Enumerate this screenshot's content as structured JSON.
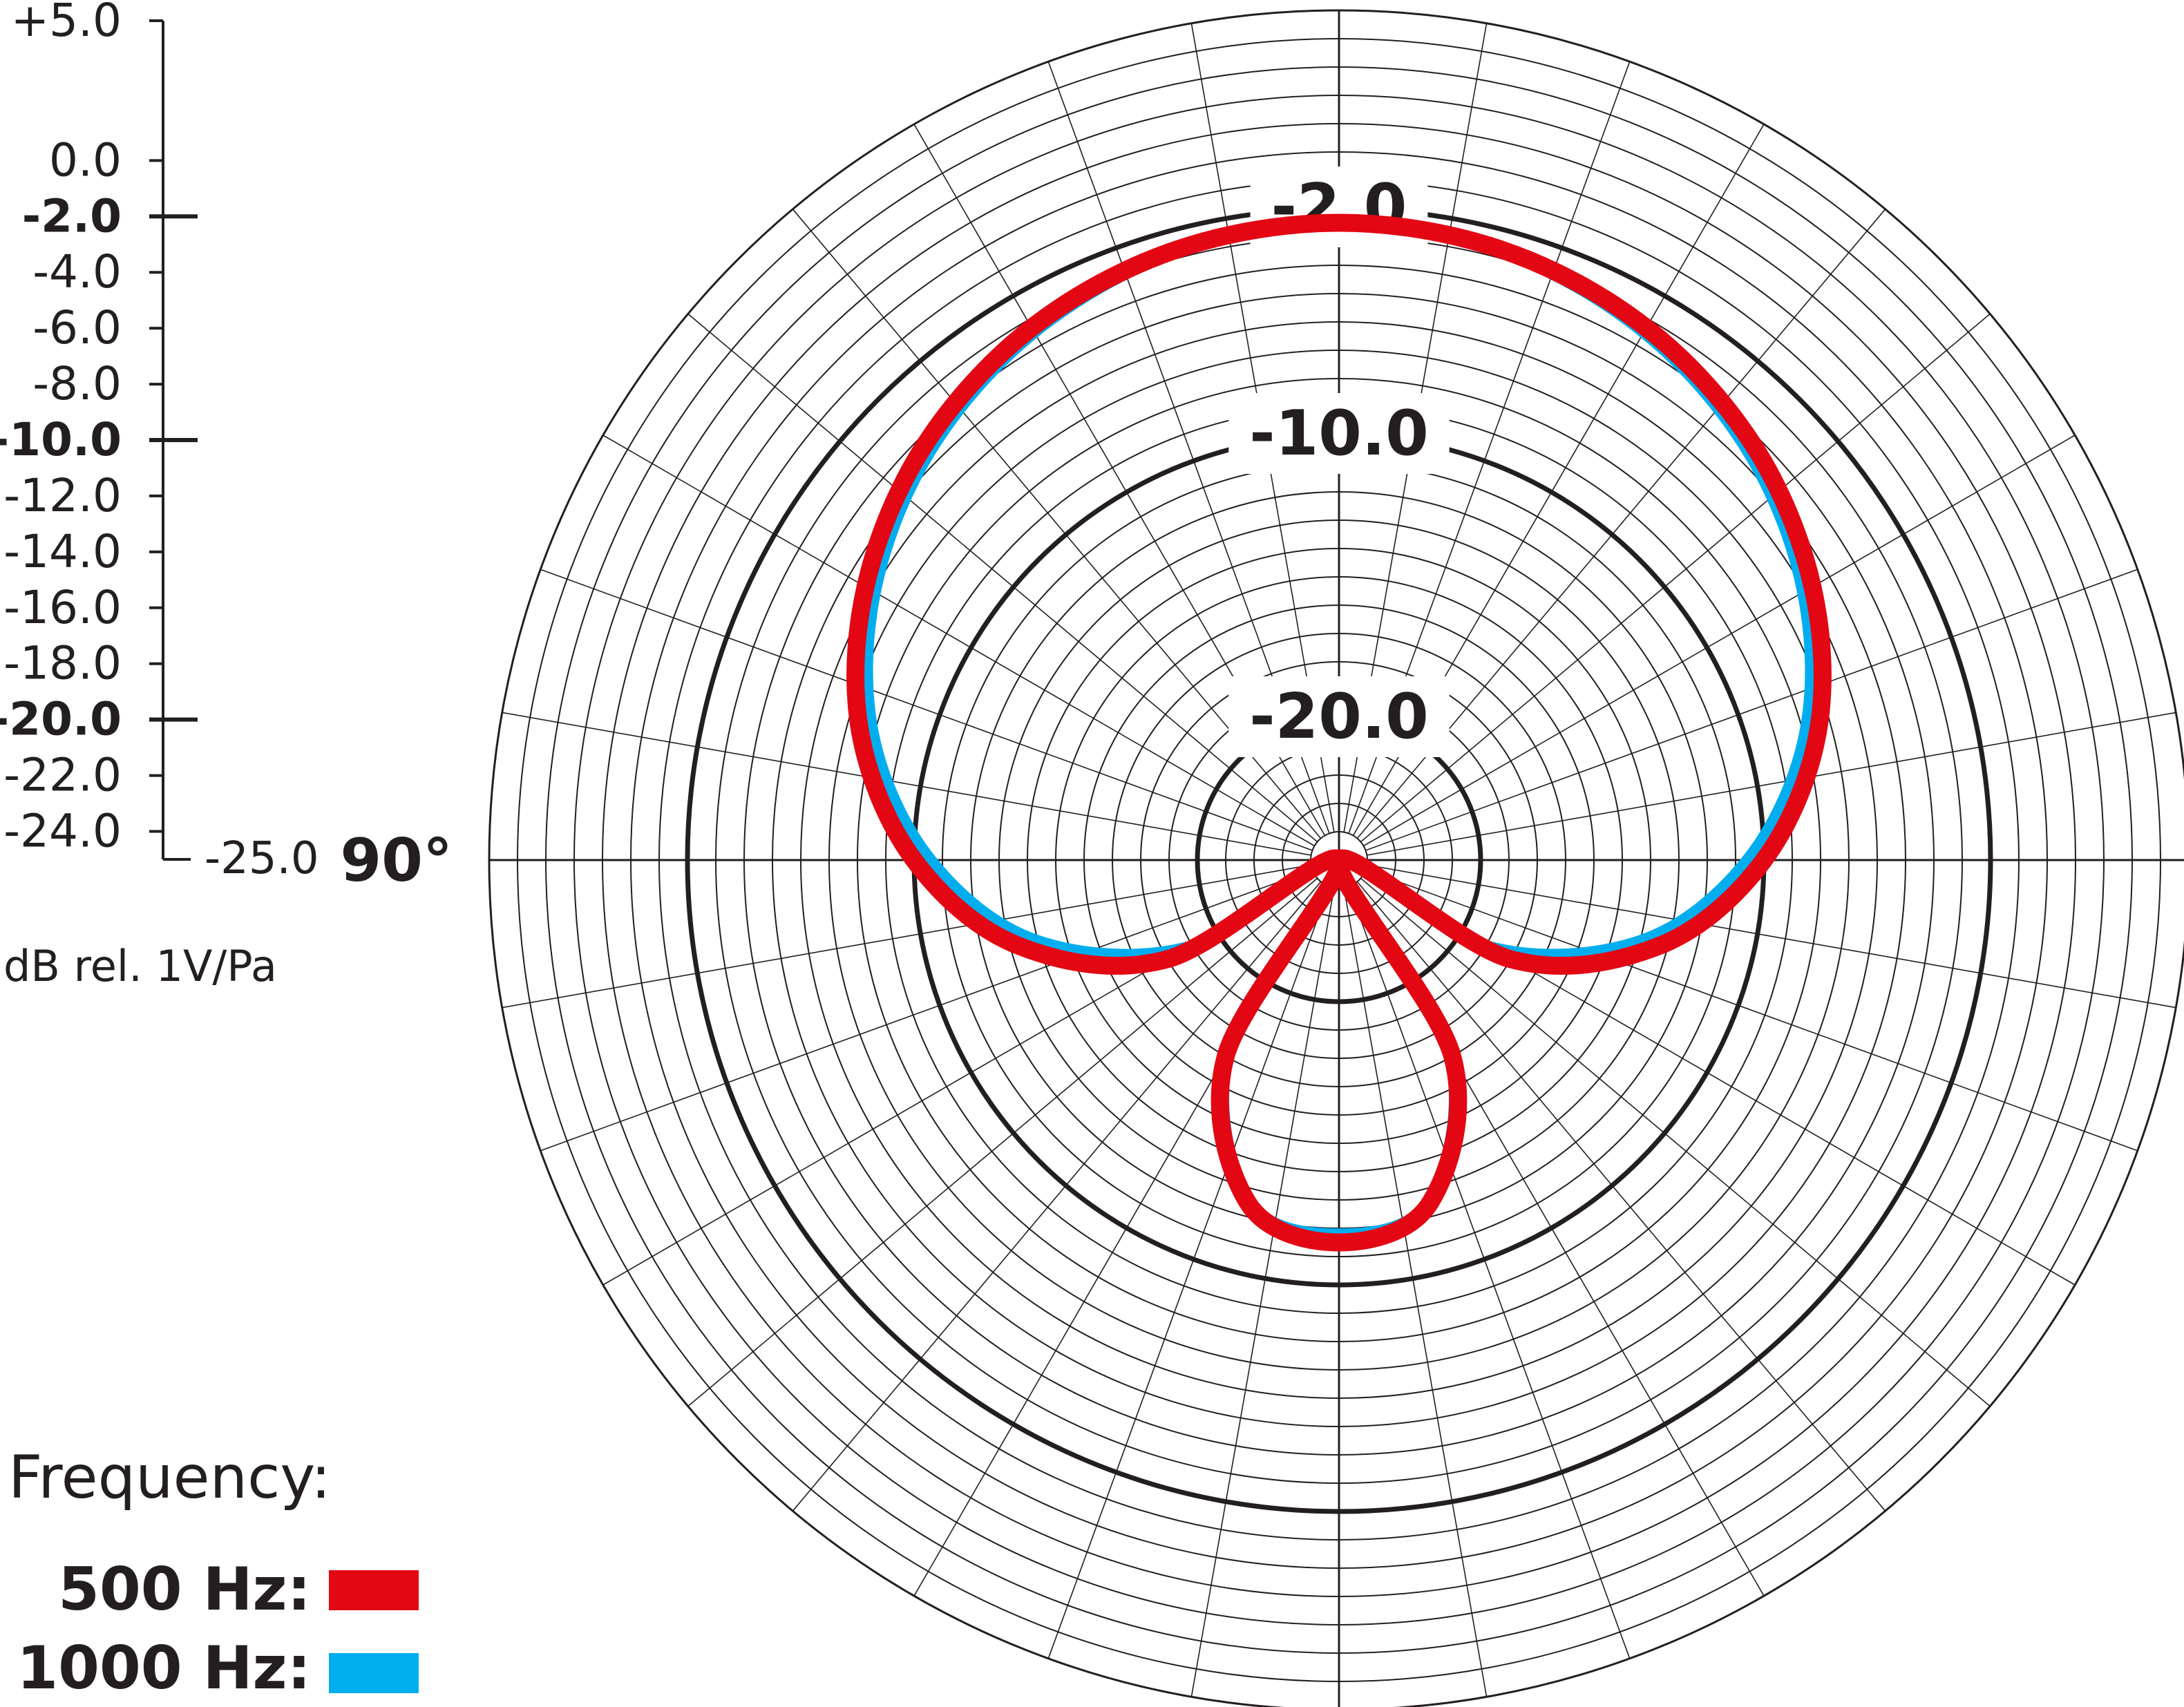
{
  "chart_data": {
    "type": "polar",
    "title": "",
    "theta_zero": "top",
    "angle_label": "90°",
    "unit_label": "dB rel. 1V/Pa",
    "r_min": -25.0,
    "r_max": 5.0,
    "angular_spokes_every_deg": 10,
    "grid": true,
    "scale_ticks": [
      {
        "value": 5.0,
        "label": "+5.0",
        "major": false
      },
      {
        "value": 0.0,
        "label": "0.0",
        "major": false
      },
      {
        "value": -2.0,
        "label": "-2.0",
        "major": true
      },
      {
        "value": -4.0,
        "label": "-4.0",
        "major": false
      },
      {
        "value": -6.0,
        "label": "-6.0",
        "major": false
      },
      {
        "value": -8.0,
        "label": "-8.0",
        "major": false
      },
      {
        "value": -10.0,
        "label": "-10.0",
        "major": true
      },
      {
        "value": -12.0,
        "label": "-12.0",
        "major": false
      },
      {
        "value": -14.0,
        "label": "-14.0",
        "major": false
      },
      {
        "value": -16.0,
        "label": "-16.0",
        "major": false
      },
      {
        "value": -18.0,
        "label": "-18.0",
        "major": false
      },
      {
        "value": -20.0,
        "label": "-20.0",
        "major": true
      },
      {
        "value": -22.0,
        "label": "-22.0",
        "major": false
      },
      {
        "value": -24.0,
        "label": "-24.0",
        "major": false
      },
      {
        "value": -25.0,
        "label": "-25.0",
        "major": false
      }
    ],
    "ring_labels": [
      {
        "value": -2.0,
        "label": "-2.0"
      },
      {
        "value": -10.0,
        "label": "-10.0"
      },
      {
        "value": -20.0,
        "label": "-20.0"
      }
    ],
    "legend": {
      "title": "Frequency:",
      "placement": "bottom-left",
      "entries": [
        {
          "label": "500 Hz:",
          "color": "#e30613"
        },
        {
          "label": "1000 Hz:",
          "color": "#00aeef"
        }
      ]
    },
    "series": [
      {
        "name": "1000 Hz",
        "color": "#00aeef",
        "theta": [
          0,
          15,
          30,
          45,
          60,
          75,
          90,
          105,
          120,
          135,
          150,
          165,
          180,
          195,
          210,
          225,
          240,
          255,
          270,
          285,
          300,
          315,
          330,
          345,
          360
        ],
        "r": [
          -2.6,
          -2.8,
          -3.5,
          -4.6,
          -6.1,
          -8.0,
          -10.6,
          -14.0,
          -18.9,
          -25.0,
          -17.3,
          -12.6,
          -11.8,
          -12.6,
          -17.3,
          -25.0,
          -18.9,
          -14.0,
          -10.6,
          -8.0,
          -6.1,
          -4.6,
          -3.5,
          -2.8,
          -2.6
        ]
      },
      {
        "name": "500 Hz",
        "color": "#e30613",
        "theta": [
          0,
          15,
          30,
          45,
          60,
          75,
          90,
          105,
          120,
          135,
          150,
          165,
          180,
          195,
          210,
          225,
          240,
          255,
          270,
          285,
          300,
          315,
          330,
          345,
          360
        ],
        "r": [
          -2.5,
          -2.7,
          -3.3,
          -4.3,
          -5.7,
          -7.5,
          -10.0,
          -13.3,
          -18.0,
          -25.0,
          -17.0,
          -12.5,
          -11.5,
          -12.5,
          -17.0,
          -25.0,
          -18.0,
          -13.3,
          -10.0,
          -7.5,
          -5.7,
          -4.3,
          -3.3,
          -2.7,
          -2.5
        ]
      }
    ]
  }
}
